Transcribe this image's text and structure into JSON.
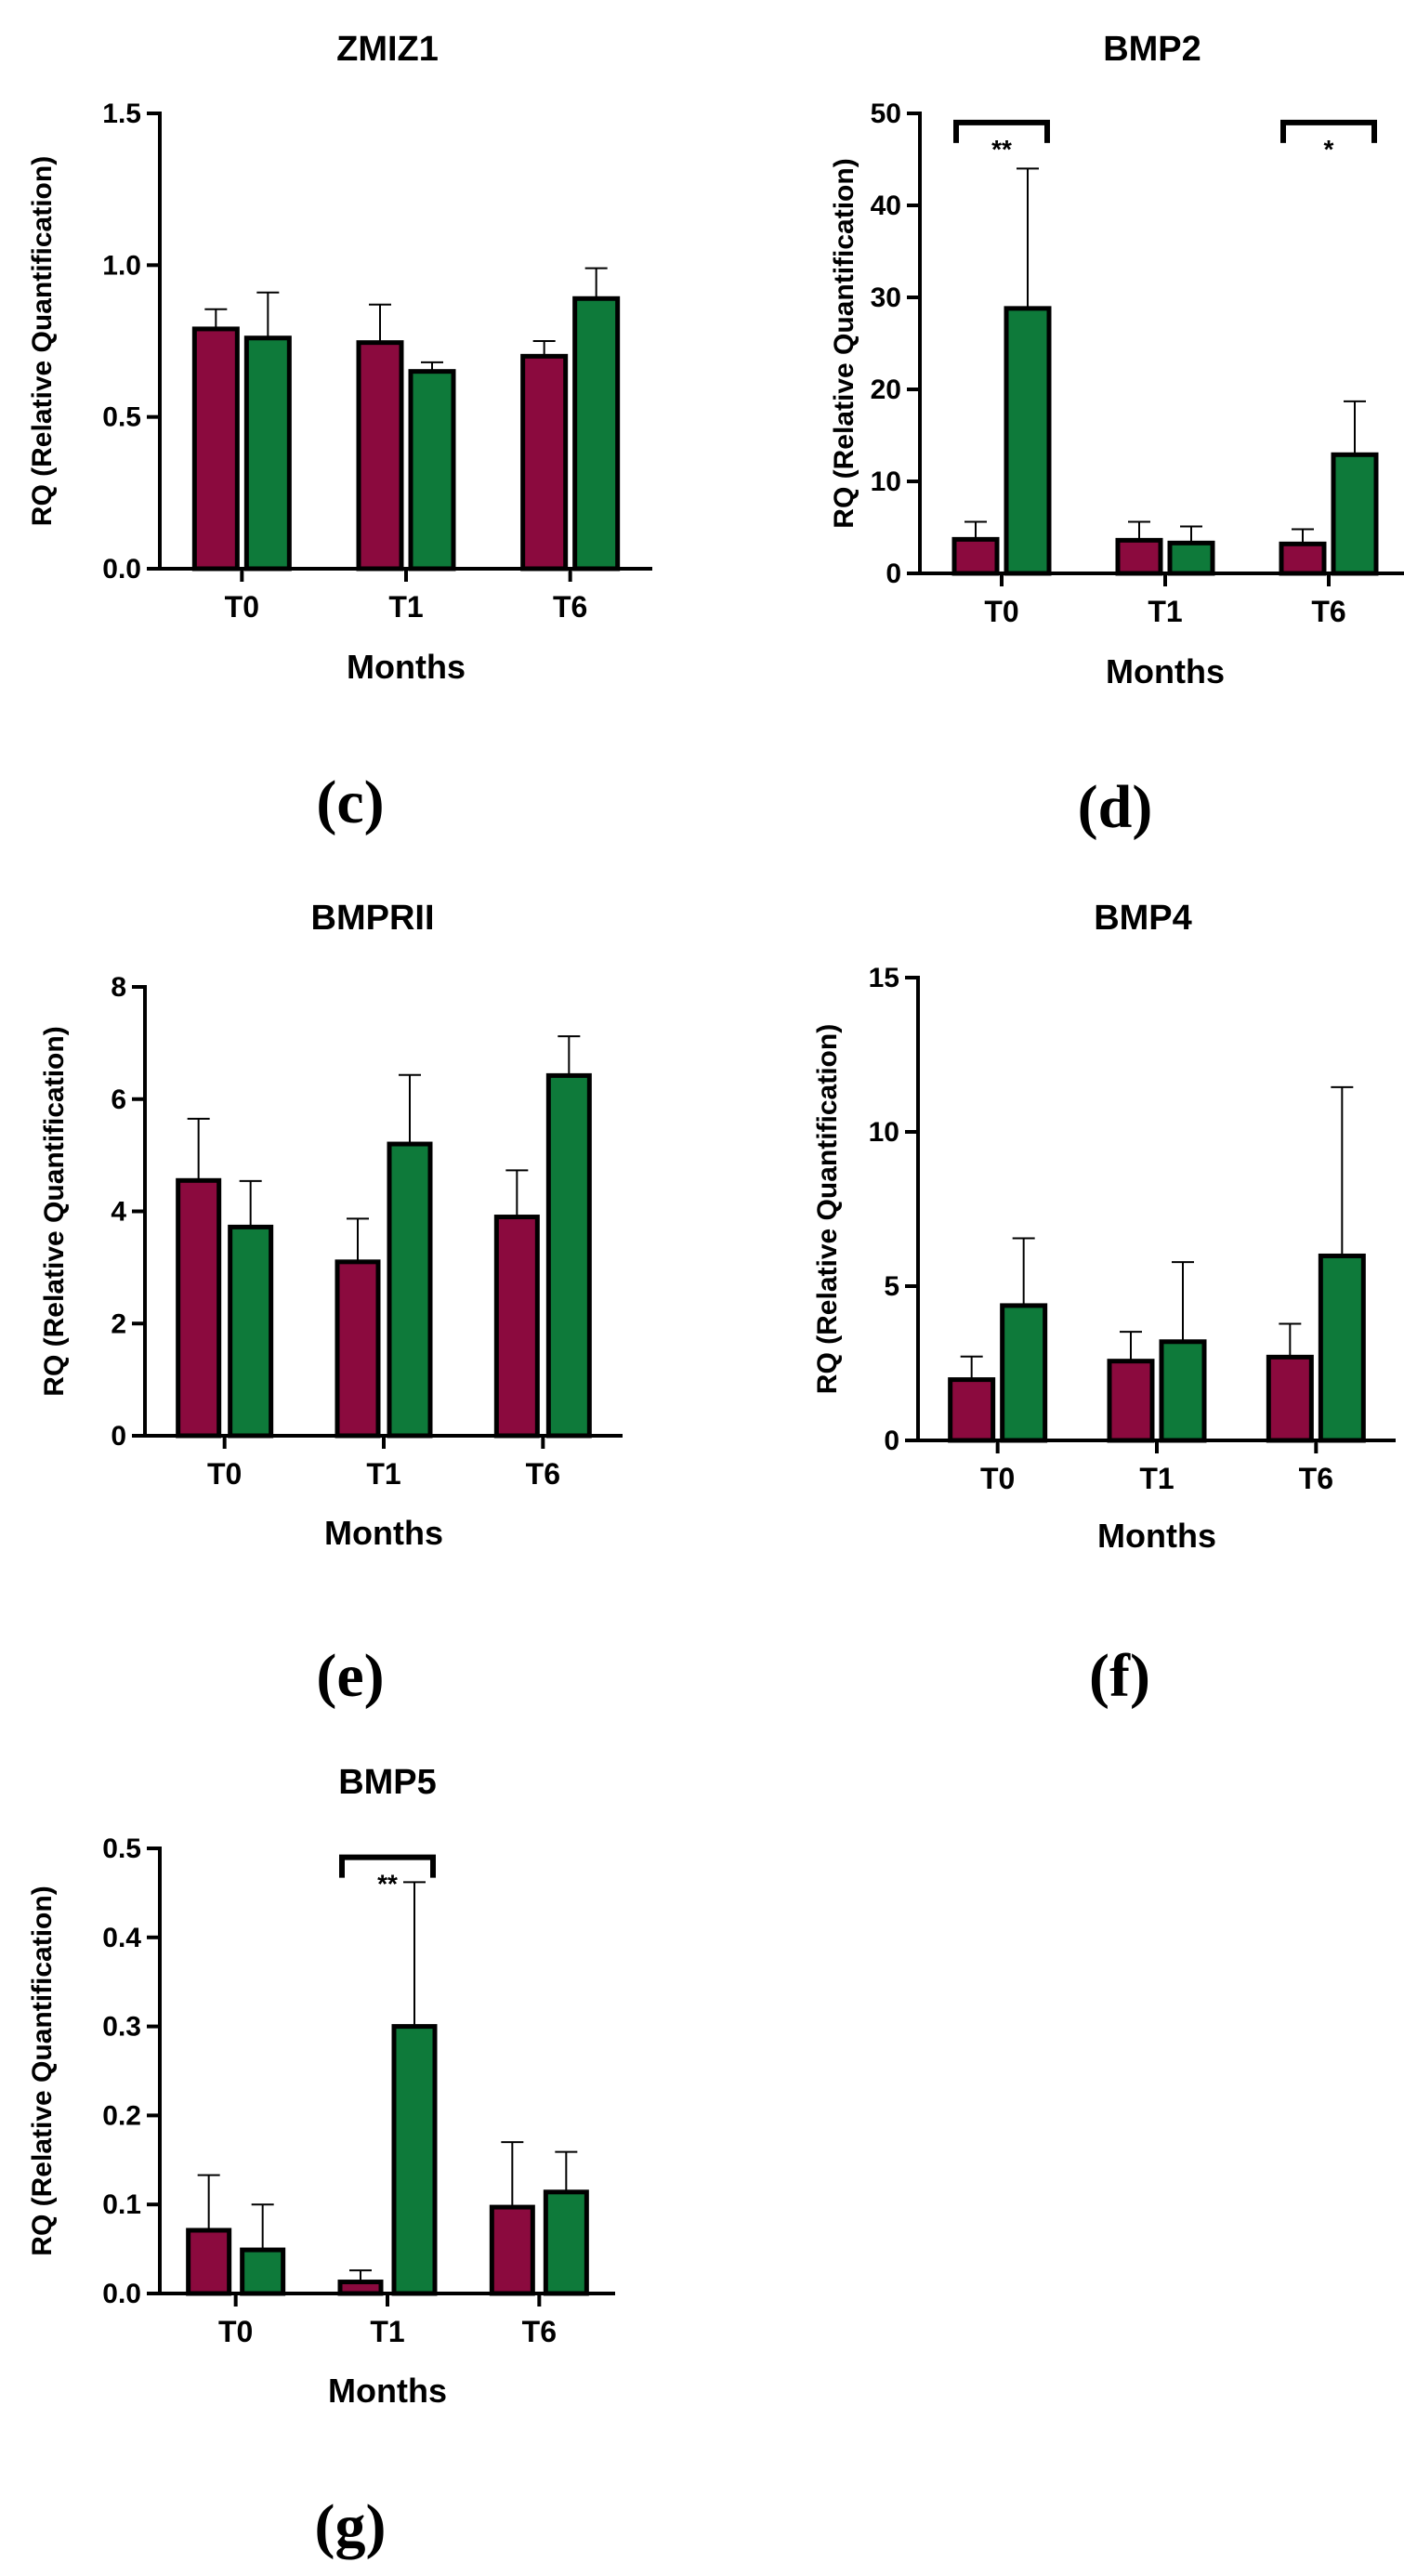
{
  "colors": {
    "group_a": "#8B0A3E",
    "group_b": "#0E7A3A",
    "stroke": "#000000"
  },
  "chart_data": [
    {
      "type": "bar",
      "panel": "(c)",
      "title": "ZMIZ1",
      "xlabel": "Months",
      "ylabel": "RQ (Relative Quantification)",
      "categories": [
        "T0",
        "T1",
        "T6"
      ],
      "ylim": [
        0,
        1.5
      ],
      "yticks": [
        "0.0",
        "0.5",
        "1.0",
        "1.5"
      ],
      "series": [
        {
          "name": "group_a",
          "values": [
            0.79,
            0.745,
            0.7
          ],
          "errors": [
            0.065,
            0.125,
            0.05
          ]
        },
        {
          "name": "group_b",
          "values": [
            0.76,
            0.65,
            0.89
          ],
          "errors": [
            0.15,
            0.03,
            0.1
          ]
        }
      ],
      "significance": []
    },
    {
      "type": "bar",
      "panel": "(d)",
      "title": "BMP2",
      "xlabel": "Months",
      "ylabel": "RQ (Relative Quantification)",
      "categories": [
        "T0",
        "T1",
        "T6"
      ],
      "ylim": [
        0,
        50
      ],
      "yticks": [
        "0",
        "10",
        "20",
        "30",
        "40",
        "50"
      ],
      "series": [
        {
          "name": "group_a",
          "values": [
            3.7,
            3.6,
            3.2
          ],
          "errors": [
            1.9,
            2.0,
            1.6
          ]
        },
        {
          "name": "group_b",
          "values": [
            28.8,
            3.3,
            12.9
          ],
          "errors": [
            15.2,
            1.8,
            5.8
          ]
        }
      ],
      "significance": [
        {
          "category": "T0",
          "label": "**",
          "y": 49
        },
        {
          "category": "T6",
          "label": "*",
          "y": 49
        }
      ]
    },
    {
      "type": "bar",
      "panel": "(e)",
      "title": "BMPRII",
      "xlabel": "Months",
      "ylabel": "RQ (Relative Quantification)",
      "categories": [
        "T0",
        "T1",
        "T6"
      ],
      "ylim": [
        0,
        8
      ],
      "yticks": [
        "0",
        "2",
        "4",
        "6",
        "8"
      ],
      "series": [
        {
          "name": "group_a",
          "values": [
            4.55,
            3.1,
            3.9
          ],
          "errors": [
            1.1,
            0.77,
            0.83
          ]
        },
        {
          "name": "group_b",
          "values": [
            3.72,
            5.2,
            6.42
          ],
          "errors": [
            0.82,
            1.23,
            0.7
          ]
        }
      ],
      "significance": []
    },
    {
      "type": "bar",
      "panel": "(f)",
      "title": "BMP4",
      "xlabel": "Months",
      "ylabel": "RQ (Relative Quantification)",
      "categories": [
        "T0",
        "T1",
        "T6"
      ],
      "ylim": [
        0,
        15
      ],
      "yticks": [
        "0",
        "5",
        "10",
        "15"
      ],
      "series": [
        {
          "name": "group_a",
          "values": [
            1.97,
            2.57,
            2.7
          ],
          "errors": [
            0.75,
            0.95,
            1.08
          ]
        },
        {
          "name": "group_b",
          "values": [
            4.37,
            3.2,
            5.98
          ],
          "errors": [
            2.18,
            2.58,
            5.47
          ]
        }
      ],
      "significance": []
    },
    {
      "type": "bar",
      "panel": "(g)",
      "title": "BMP5",
      "xlabel": "Months",
      "ylabel": "RQ (Relative Quantification)",
      "categories": [
        "T0",
        "T1",
        "T6"
      ],
      "ylim": [
        0,
        0.5
      ],
      "yticks": [
        "0.0",
        "0.1",
        "0.2",
        "0.3",
        "0.4",
        "0.5"
      ],
      "series": [
        {
          "name": "group_a",
          "values": [
            0.071,
            0.013,
            0.097
          ],
          "errors": [
            0.062,
            0.013,
            0.073
          ]
        },
        {
          "name": "group_b",
          "values": [
            0.049,
            0.3,
            0.114
          ],
          "errors": [
            0.051,
            0.162,
            0.045
          ]
        }
      ],
      "significance": [
        {
          "category": "T1",
          "label": "**",
          "y": 0.49
        }
      ]
    }
  ]
}
